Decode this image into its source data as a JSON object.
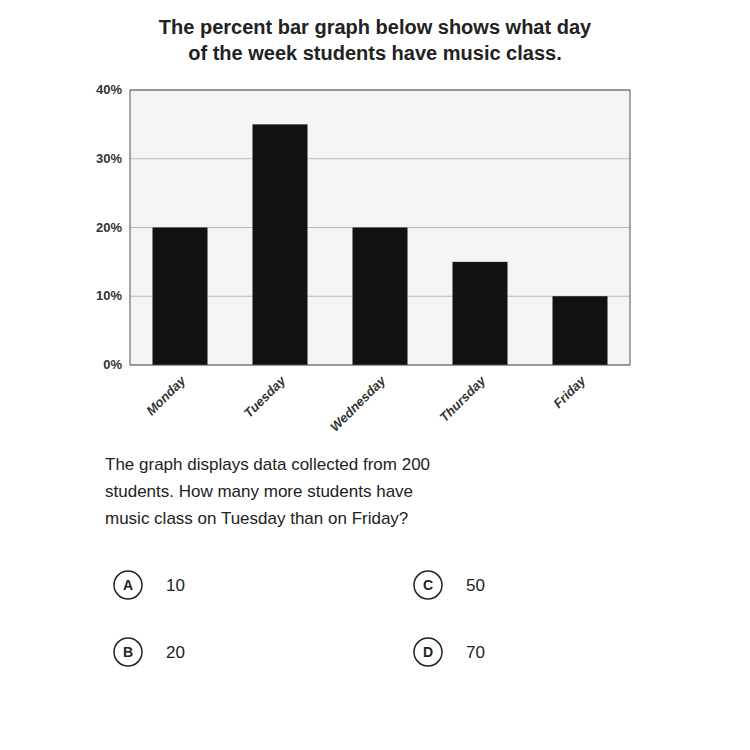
{
  "chart_data": {
    "type": "bar",
    "title": "The percent bar graph below shows what day\nof the week students have music class.",
    "categories": [
      "Monday",
      "Tuesday",
      "Wednesday",
      "Thursday",
      "Friday"
    ],
    "values": [
      20,
      35,
      20,
      15,
      10
    ],
    "color": "#111111",
    "ylim": [
      0,
      40
    ],
    "yticks": [
      {
        "value": 0,
        "label": "0%"
      },
      {
        "value": 10,
        "label": "10%"
      },
      {
        "value": 20,
        "label": "20%"
      },
      {
        "value": 30,
        "label": "30%"
      },
      {
        "value": 40,
        "label": "40%"
      }
    ],
    "grid": true,
    "annotations": [
      {
        "text": "The graph displays data collected from 200\nstudents. How many more students have\nmusic class on Tuesday than on Friday?"
      },
      {
        "label": "A",
        "text": "10"
      },
      {
        "label": "B",
        "text": "20"
      },
      {
        "label": "C",
        "text": "50"
      },
      {
        "label": "D",
        "text": "70"
      }
    ]
  }
}
